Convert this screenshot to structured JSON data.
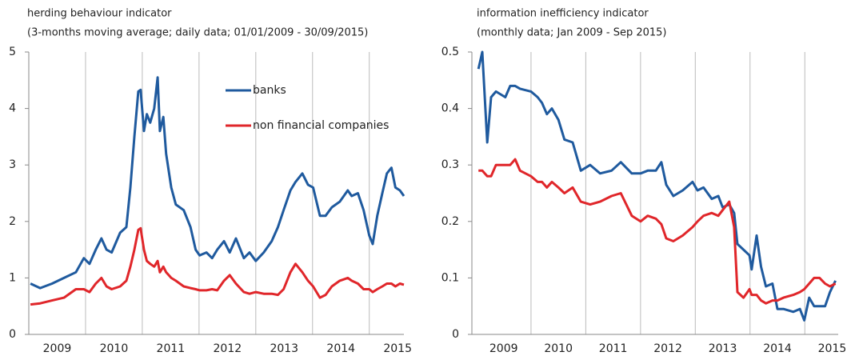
{
  "chart_data": [
    {
      "type": "line",
      "title": "herding behaviour  indicator",
      "subtitle": "(3-months moving average; daily data; 01/01/2009 - 30/09/2015)",
      "x": [
        2009.03,
        2009.2,
        2009.41,
        2009.62,
        2009.83,
        2009.97,
        2010.07,
        2010.18,
        2010.28,
        2010.37,
        2010.46,
        2010.61,
        2010.72,
        2010.79,
        2010.86,
        2010.93,
        2010.97,
        2011.03,
        2011.08,
        2011.14,
        2011.21,
        2011.27,
        2011.31,
        2011.37,
        2011.42,
        2011.51,
        2011.59,
        2011.73,
        2011.85,
        2011.94,
        2012.01,
        2012.13,
        2012.23,
        2012.32,
        2012.44,
        2012.54,
        2012.65,
        2012.79,
        2012.89,
        2013.0,
        2013.14,
        2013.28,
        2013.39,
        2013.49,
        2013.61,
        2013.7,
        2013.82,
        2013.92,
        2014.01,
        2014.13,
        2014.23,
        2014.34,
        2014.48,
        2014.62,
        2014.69,
        2014.8,
        2014.9,
        2015.0,
        2015.06,
        2015.14,
        2015.23,
        2015.31,
        2015.39,
        2015.46,
        2015.54,
        2015.61
      ],
      "series": [
        {
          "name": "banks",
          "color": "#1f5a9e",
          "values": [
            0.9,
            0.82,
            0.9,
            1.0,
            1.1,
            1.35,
            1.25,
            1.5,
            1.7,
            1.5,
            1.45,
            1.8,
            1.9,
            2.6,
            3.5,
            4.3,
            4.33,
            3.6,
            3.9,
            3.75,
            4.0,
            4.55,
            3.6,
            3.85,
            3.2,
            2.6,
            2.3,
            2.2,
            1.9,
            1.5,
            1.4,
            1.45,
            1.35,
            1.5,
            1.65,
            1.45,
            1.7,
            1.35,
            1.45,
            1.3,
            1.45,
            1.65,
            1.9,
            2.2,
            2.55,
            2.7,
            2.85,
            2.65,
            2.6,
            2.1,
            2.1,
            2.25,
            2.35,
            2.55,
            2.45,
            2.5,
            2.2,
            1.75,
            1.6,
            2.1,
            2.5,
            2.85,
            2.95,
            2.6,
            2.55,
            2.45
          ]
        },
        {
          "name": "non financial companies",
          "color": "#e0262a",
          "values": [
            0.53,
            0.55,
            0.6,
            0.65,
            0.8,
            0.8,
            0.75,
            0.9,
            1.0,
            0.85,
            0.8,
            0.85,
            0.95,
            1.2,
            1.5,
            1.85,
            1.88,
            1.5,
            1.3,
            1.25,
            1.2,
            1.3,
            1.1,
            1.2,
            1.1,
            1.0,
            0.95,
            0.85,
            0.82,
            0.8,
            0.78,
            0.78,
            0.8,
            0.78,
            0.95,
            1.05,
            0.9,
            0.75,
            0.72,
            0.75,
            0.72,
            0.72,
            0.7,
            0.8,
            1.1,
            1.25,
            1.1,
            0.95,
            0.85,
            0.65,
            0.7,
            0.85,
            0.95,
            1.0,
            0.95,
            0.9,
            0.8,
            0.8,
            0.75,
            0.8,
            0.85,
            0.9,
            0.9,
            0.85,
            0.9,
            0.88
          ]
        }
      ],
      "xlim": [
        2009.0,
        2015.61
      ],
      "xticks": [
        {
          "value": 2009.5,
          "label": "2009"
        },
        {
          "value": 2010.5,
          "label": "2010"
        },
        {
          "value": 2011.5,
          "label": "2011"
        },
        {
          "value": 2012.5,
          "label": "2012"
        },
        {
          "value": 2013.5,
          "label": "2013"
        },
        {
          "value": 2014.5,
          "label": "2014"
        },
        {
          "value": 2015.5,
          "label": "2015"
        }
      ],
      "ylim": [
        0,
        5
      ],
      "yticks": [
        0,
        1,
        2,
        3,
        4,
        5
      ],
      "legend": "upper center"
    },
    {
      "type": "line",
      "title": "information inefficiency indicator",
      "subtitle": "(monthly data; Jan 2009 - Sep 2015)",
      "x": [
        2009.04,
        2009.11,
        2009.2,
        2009.27,
        2009.36,
        2009.53,
        2009.62,
        2009.71,
        2009.8,
        2010.0,
        2010.12,
        2010.2,
        2010.29,
        2010.38,
        2010.5,
        2010.61,
        2010.76,
        2010.91,
        2011.08,
        2011.26,
        2011.47,
        2011.64,
        2011.84,
        2012.0,
        2012.13,
        2012.28,
        2012.38,
        2012.47,
        2012.6,
        2012.77,
        2012.95,
        2013.04,
        2013.15,
        2013.3,
        2013.42,
        2013.5,
        2013.62,
        2013.71,
        2013.77,
        2013.88,
        2013.99,
        2014.03,
        2014.12,
        2014.2,
        2014.29,
        2014.41,
        2014.5,
        2014.61,
        2014.79,
        2014.91,
        2014.99,
        2015.08,
        2015.17,
        2015.27,
        2015.37,
        2015.46,
        2015.56
      ],
      "series": [
        {
          "name": "banks",
          "color": "#1f5a9e",
          "values": [
            0.47,
            0.5,
            0.34,
            0.42,
            0.43,
            0.42,
            0.44,
            0.44,
            0.435,
            0.43,
            0.42,
            0.41,
            0.39,
            0.4,
            0.38,
            0.345,
            0.34,
            0.29,
            0.3,
            0.285,
            0.29,
            0.305,
            0.285,
            0.285,
            0.29,
            0.29,
            0.305,
            0.265,
            0.245,
            0.255,
            0.27,
            0.255,
            0.26,
            0.24,
            0.245,
            0.225,
            0.23,
            0.215,
            0.16,
            0.15,
            0.14,
            0.115,
            0.175,
            0.12,
            0.085,
            0.09,
            0.045,
            0.045,
            0.04,
            0.045,
            0.025,
            0.065,
            0.05,
            0.05,
            0.05,
            0.075,
            0.095
          ]
        },
        {
          "name": "non financial companies",
          "color": "#e0262a",
          "values": [
            0.29,
            0.29,
            0.28,
            0.28,
            0.3,
            0.3,
            0.3,
            0.31,
            0.29,
            0.28,
            0.27,
            0.27,
            0.26,
            0.27,
            0.26,
            0.25,
            0.26,
            0.235,
            0.23,
            0.235,
            0.245,
            0.25,
            0.21,
            0.2,
            0.21,
            0.205,
            0.195,
            0.17,
            0.165,
            0.175,
            0.19,
            0.2,
            0.21,
            0.215,
            0.21,
            0.22,
            0.235,
            0.19,
            0.075,
            0.065,
            0.08,
            0.07,
            0.07,
            0.06,
            0.055,
            0.06,
            0.06,
            0.065,
            0.07,
            0.075,
            0.08,
            0.09,
            0.1,
            0.1,
            0.09,
            0.085,
            0.09
          ]
        }
      ],
      "xlim": [
        2008.92,
        2015.61
      ],
      "xticks": [
        {
          "value": 2009.5,
          "label": "2009"
        },
        {
          "value": 2010.5,
          "label": "2010"
        },
        {
          "value": 2011.5,
          "label": "2011"
        },
        {
          "value": 2012.5,
          "label": "2012"
        },
        {
          "value": 2013.5,
          "label": "2013"
        },
        {
          "value": 2014.5,
          "label": "2014"
        },
        {
          "value": 2015.5,
          "label": "2015"
        }
      ],
      "ylim": [
        0,
        0.5
      ],
      "yticks": [
        0,
        0.1,
        0.2,
        0.3,
        0.4,
        0.5
      ]
    }
  ]
}
